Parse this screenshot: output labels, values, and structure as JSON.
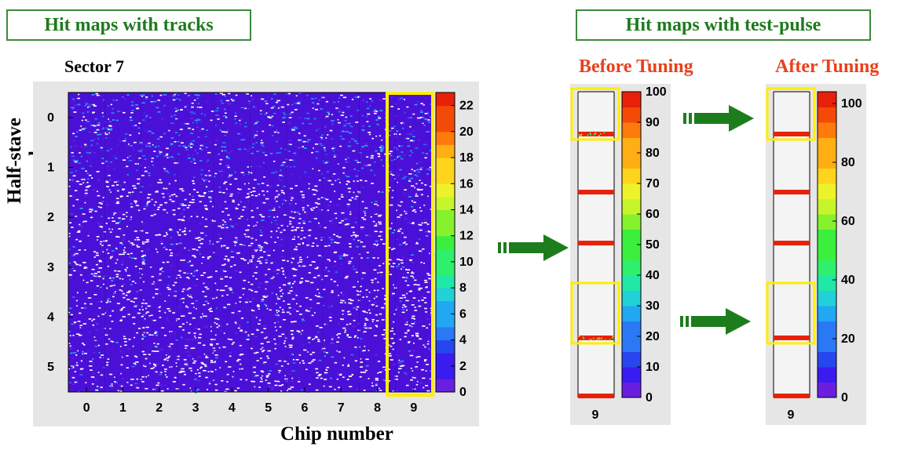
{
  "left_panel": {
    "title": "Hit maps with tracks",
    "sector_label": "Sector 7",
    "ylabel": "Half-stave number",
    "xlabel": "Chip number"
  },
  "right_panel": {
    "title": "Hit maps with test-pulse",
    "before_label": "Before Tuning",
    "after_label": "After Tuning",
    "before_xtick": "9",
    "after_xtick": "9"
  },
  "colors": {
    "title_green": "#1e7a1e",
    "tuning_red": "#e8401c",
    "highlight_yellow": "#ffee00",
    "arrow_green": "#1d7d1d",
    "map_blue": "#4b10d8"
  },
  "chart_data": [
    {
      "type": "heatmap",
      "title": "Sector 7",
      "xlabel": "Chip number",
      "ylabel": "Half-stave number",
      "x_ticks": [
        "0",
        "1",
        "2",
        "3",
        "4",
        "5",
        "6",
        "7",
        "8",
        "9"
      ],
      "y_ticks": [
        "0",
        "1",
        "2",
        "3",
        "4",
        "5"
      ],
      "xlim": [
        -0.5,
        9.5
      ],
      "ylim": [
        -0.5,
        5.5
      ],
      "z_ticks": [
        "0",
        "2",
        "4",
        "6",
        "8",
        "10",
        "12",
        "14",
        "16",
        "18",
        "20",
        "22"
      ],
      "zlim": [
        0,
        23
      ],
      "highlight_chip": 9
    },
    {
      "type": "heatmap",
      "title": "Before Tuning",
      "x_ticks": [
        "9"
      ],
      "z_ticks": [
        "0",
        "10",
        "20",
        "30",
        "40",
        "50",
        "60",
        "70",
        "80",
        "90",
        "100"
      ],
      "zlim": [
        0,
        100
      ],
      "hit_rows": [
        0.83,
        1.97,
        2.97,
        4.83,
        5.97
      ],
      "highlight_rows": [
        0.83,
        4.83
      ]
    },
    {
      "type": "heatmap",
      "title": "After Tuning",
      "x_ticks": [
        "9"
      ],
      "z_ticks": [
        "0",
        "20",
        "40",
        "60",
        "80",
        "100"
      ],
      "zlim": [
        0,
        104
      ],
      "hit_rows": [
        0.83,
        1.97,
        2.97,
        4.83,
        5.97
      ],
      "highlight_rows": [
        0.83,
        4.83
      ]
    }
  ]
}
